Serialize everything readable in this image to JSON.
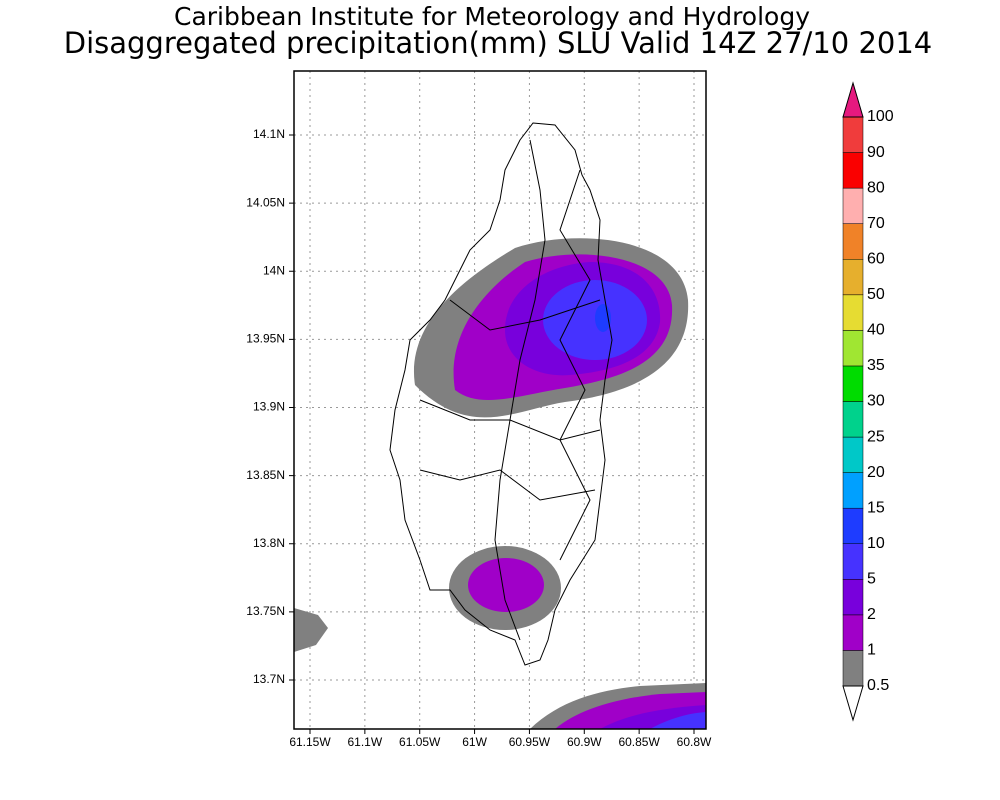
{
  "title": "Caribbean Institute for Meteorology and Hydrology",
  "subtitle": "Disaggregated precipitation(mm) SLU Valid 14Z 27/10 2014",
  "map": {
    "xticks": [
      "61.15W",
      "61.1W",
      "61.05W",
      "61W",
      "60.95W",
      "60.9W",
      "60.85W",
      "60.8W"
    ],
    "yticks": [
      "14.1N",
      "14.05N",
      "14N",
      "13.95N",
      "13.9N",
      "13.85N",
      "13.8N",
      "13.75N",
      "13.7N"
    ]
  },
  "colorbar": {
    "levels": [
      "0.5",
      "1",
      "2",
      "5",
      "10",
      "15",
      "20",
      "25",
      "30",
      "35",
      "40",
      "50",
      "60",
      "70",
      "80",
      "90",
      "100"
    ],
    "colors": [
      "#808080",
      "#a000c8",
      "#7800dc",
      "#4632ff",
      "#1e3cff",
      "#00a0ff",
      "#00c8c8",
      "#00d28c",
      "#00dc00",
      "#a0e632",
      "#e6dc32",
      "#e6af2d",
      "#f08228",
      "#ffafaf",
      "#fa0000",
      "#f03c3c"
    ],
    "under_color": "#ffffff",
    "over_color": "#e6197f"
  }
}
